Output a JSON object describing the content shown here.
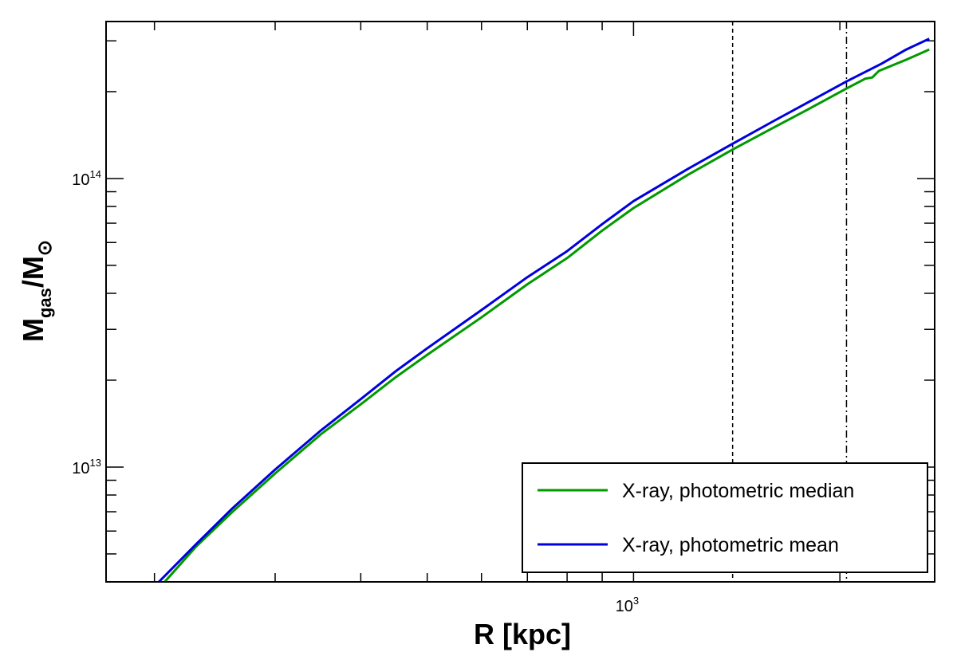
{
  "chart_data": {
    "type": "line",
    "xlabel": "R [kpc]",
    "ylabel_main": "M",
    "ylabel_sub": "gas",
    "ylabel_sep": "/M",
    "ylabel_sub2": "⊙",
    "xscale": "log",
    "yscale": "log",
    "xlim": [
      170,
      2750
    ],
    "ylim": [
      4000000000000.0,
      350000000000000.0
    ],
    "x_tick_labels": [
      {
        "base": "10",
        "exp": "3",
        "value": 1000
      }
    ],
    "y_tick_labels": [
      {
        "base": "10",
        "exp": "13",
        "value": 10000000000000.0
      },
      {
        "base": "10",
        "exp": "14",
        "value": 100000000000000.0
      }
    ],
    "vlines": [
      {
        "x": 1395,
        "style": "dashed"
      },
      {
        "x": 2045,
        "style": "dashdot"
      }
    ],
    "legend_position": "lower-right",
    "grid": false,
    "series": [
      {
        "name": "X-ray, photometric median",
        "color": "#009900",
        "x": [
          207,
          230,
          260,
          300,
          350,
          400,
          450,
          500,
          600,
          700,
          800,
          900,
          1000,
          1200,
          1395,
          1600,
          1800,
          2045,
          2180,
          2230,
          2280,
          2500,
          2700
        ],
        "y": [
          4000000000000.0,
          5300000000000.0,
          7000000000000.0,
          9500000000000.0,
          13000000000000.0,
          16500000000000.0,
          20500000000000.0,
          24500000000000.0,
          33000000000000.0,
          43000000000000.0,
          53000000000000.0,
          66000000000000.0,
          79000000000000.0,
          103000000000000.0,
          126000000000000.0,
          150000000000000.0,
          174000000000000.0,
          205000000000000.0,
          222000000000000.0,
          224000000000000.0,
          236000000000000.0,
          258000000000000.0,
          280000000000000.0
        ]
      },
      {
        "name": "X-ray, photometric mean",
        "color": "#0000dd",
        "x": [
          203,
          230,
          260,
          300,
          350,
          400,
          450,
          500,
          600,
          700,
          800,
          900,
          1000,
          1200,
          1395,
          1600,
          1800,
          2045,
          2300,
          2500,
          2700
        ],
        "y": [
          4000000000000.0,
          5400000000000.0,
          7200000000000.0,
          9800000000000.0,
          13400000000000.0,
          17200000000000.0,
          21500000000000.0,
          25800000000000.0,
          35000000000000.0,
          45500000000000.0,
          56000000000000.0,
          69500000000000.0,
          83500000000000.0,
          108000000000000.0,
          132000000000000.0,
          158000000000000.0,
          184000000000000.0,
          217000000000000.0,
          250000000000000.0,
          280000000000000.0,
          305000000000000.0
        ]
      }
    ]
  }
}
